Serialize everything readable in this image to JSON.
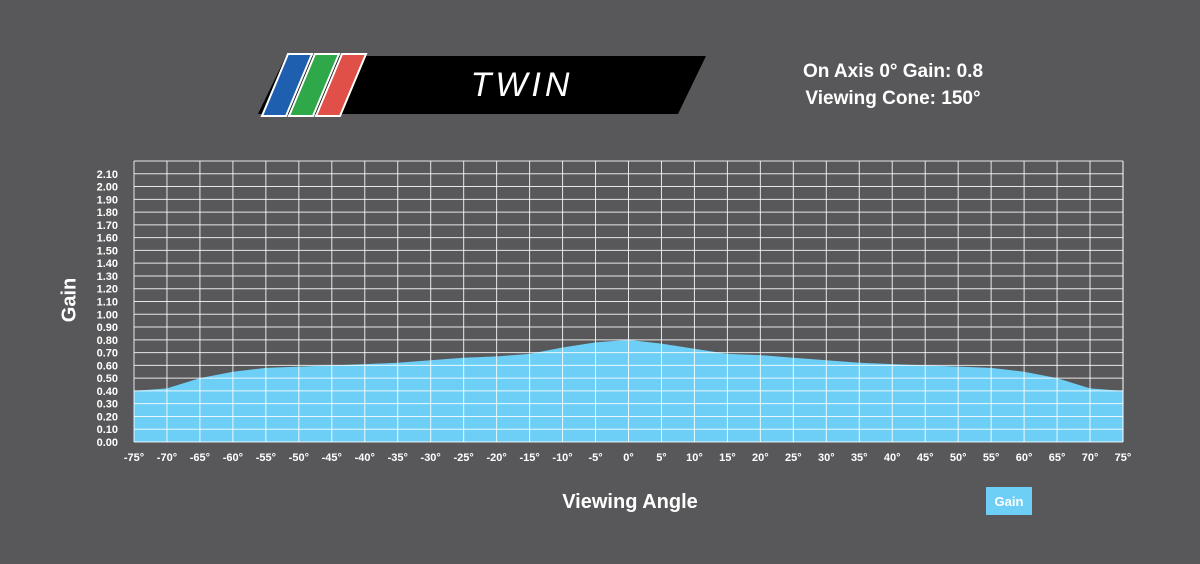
{
  "header": {
    "product_name": "TWIN",
    "specs": [
      "On Axis 0° Gain: 0.8",
      "Viewing Cone: 150°"
    ],
    "stripe_colors": [
      "#1f5fb0",
      "#2fa84a",
      "#e05048"
    ]
  },
  "colors": {
    "background": "#58585a",
    "area_fill": "#6dcff6",
    "grid": "#ffffff",
    "banner": "#000000"
  },
  "chart_data": {
    "type": "area",
    "title": "",
    "xlabel": "Viewing Angle",
    "ylabel": "Gain",
    "x": [
      -75,
      -70,
      -65,
      -60,
      -55,
      -50,
      -45,
      -40,
      -35,
      -30,
      -25,
      -20,
      -15,
      -10,
      -5,
      0,
      5,
      10,
      15,
      20,
      25,
      30,
      35,
      40,
      45,
      50,
      55,
      60,
      65,
      70,
      75
    ],
    "x_tick_labels": [
      "-75°",
      "-70°",
      "-65°",
      "-60°",
      "-55°",
      "-50°",
      "-45°",
      "-40°",
      "-35°",
      "-30°",
      "-25°",
      "-20°",
      "-15°",
      "-10°",
      "-5°",
      "0°",
      "5°",
      "10°",
      "15°",
      "20°",
      "25°",
      "30°",
      "35°",
      "40°",
      "45°",
      "50°",
      "55°",
      "60°",
      "65°",
      "70°",
      "75°"
    ],
    "series": [
      {
        "name": "Gain",
        "values": [
          0.4,
          0.42,
          0.5,
          0.55,
          0.58,
          0.59,
          0.6,
          0.61,
          0.62,
          0.64,
          0.66,
          0.67,
          0.69,
          0.74,
          0.78,
          0.8,
          0.77,
          0.73,
          0.69,
          0.68,
          0.66,
          0.64,
          0.62,
          0.61,
          0.6,
          0.59,
          0.58,
          0.55,
          0.5,
          0.42,
          0.4
        ]
      }
    ],
    "xlim": [
      -75,
      75
    ],
    "ylim": [
      0,
      2.1
    ],
    "y_ticks": [
      "0.00",
      "0.10",
      "0.20",
      "0.30",
      "0.40",
      "0.50",
      "0.60",
      "0.70",
      "0.80",
      "0.90",
      "1.00",
      "1.10",
      "1.20",
      "1.30",
      "1.40",
      "1.50",
      "1.60",
      "1.70",
      "1.80",
      "1.90",
      "2.00",
      "2.10"
    ],
    "grid": true,
    "legend": "bottom-right"
  }
}
